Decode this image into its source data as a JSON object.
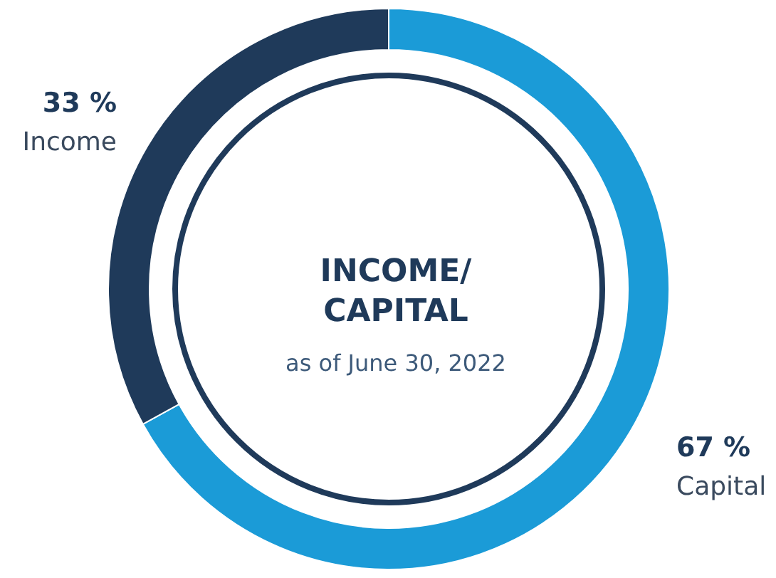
{
  "chart_data": {
    "type": "donut",
    "title": "INCOME/\nCAPITAL",
    "subtitle": "as of June 30, 2022",
    "categories": [
      "Capital",
      "Income"
    ],
    "values": [
      67,
      33
    ],
    "colors": [
      "#1b9bd7",
      "#1f3a5a"
    ],
    "value_labels": [
      "67 %",
      "33 %"
    ],
    "legend": false
  }
}
